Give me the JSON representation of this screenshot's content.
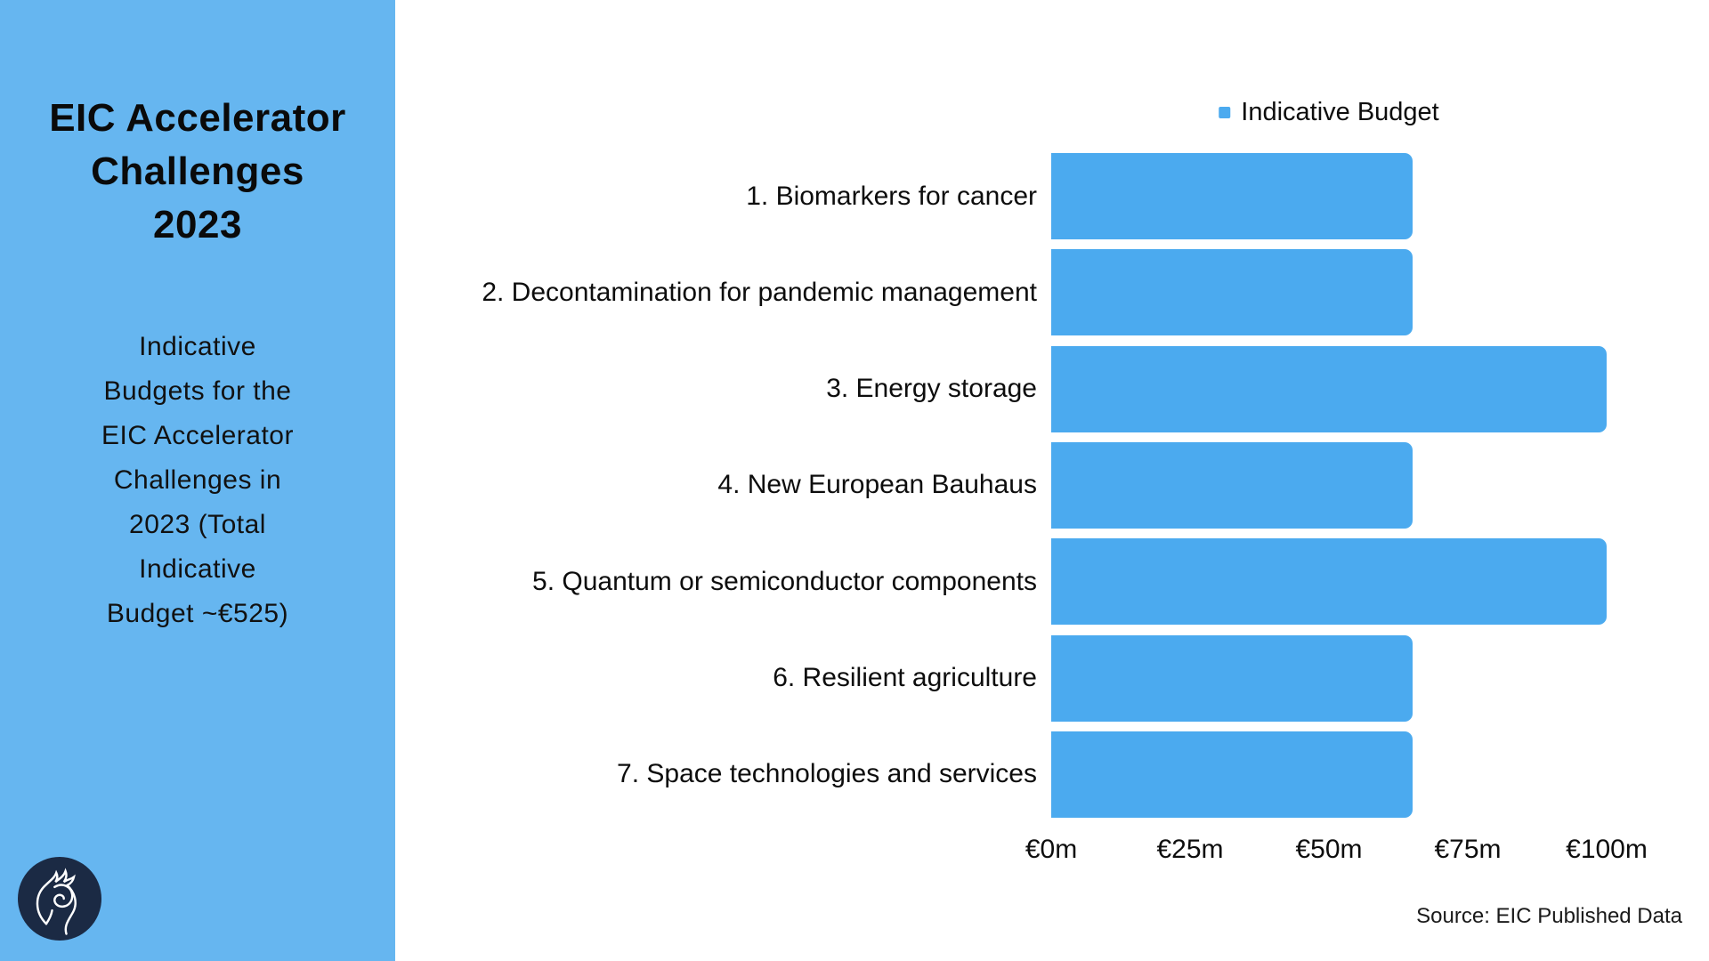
{
  "sidebar": {
    "title": "EIC Accelerator\nChallenges\n2023",
    "subtitle": "Indicative\nBudgets for the\nEIC Accelerator\nChallenges in\n2023 (Total\nIndicative\nBudget ~€525)",
    "logo_icon": "horse-head-logo"
  },
  "colors": {
    "sidebar_bg": "#66B6F0",
    "bar": "#4BAAEF",
    "legend_marker": "#4BAAEF",
    "logo_bg": "#1B2A44",
    "logo_line": "#FFFFFF",
    "text": "#0D0D0D"
  },
  "chart_data": {
    "type": "bar",
    "orientation": "horizontal",
    "title": "",
    "categories": [
      "1. Biomarkers for cancer",
      "2. Decontamination for pandemic management",
      "3. Energy storage",
      "4. New European Bauhaus",
      "5. Quantum or semiconductor components",
      "6. Resilient agriculture",
      "7. Space technologies and services"
    ],
    "series": [
      {
        "name": "Indicative Budget",
        "values": [
          65,
          65,
          100,
          65,
          100,
          65,
          65
        ]
      }
    ],
    "unit": "€m",
    "xlim": [
      0,
      100
    ],
    "x_tick_values": [
      0,
      25,
      50,
      75,
      100
    ],
    "x_tick_labels": [
      "€0m",
      "€25m",
      "€50m",
      "€75m",
      "€100m"
    ],
    "legend": [
      "Indicative Budget"
    ],
    "legend_position": "top",
    "grid": false
  },
  "footer": {
    "source": "Source: EIC Published Data"
  }
}
